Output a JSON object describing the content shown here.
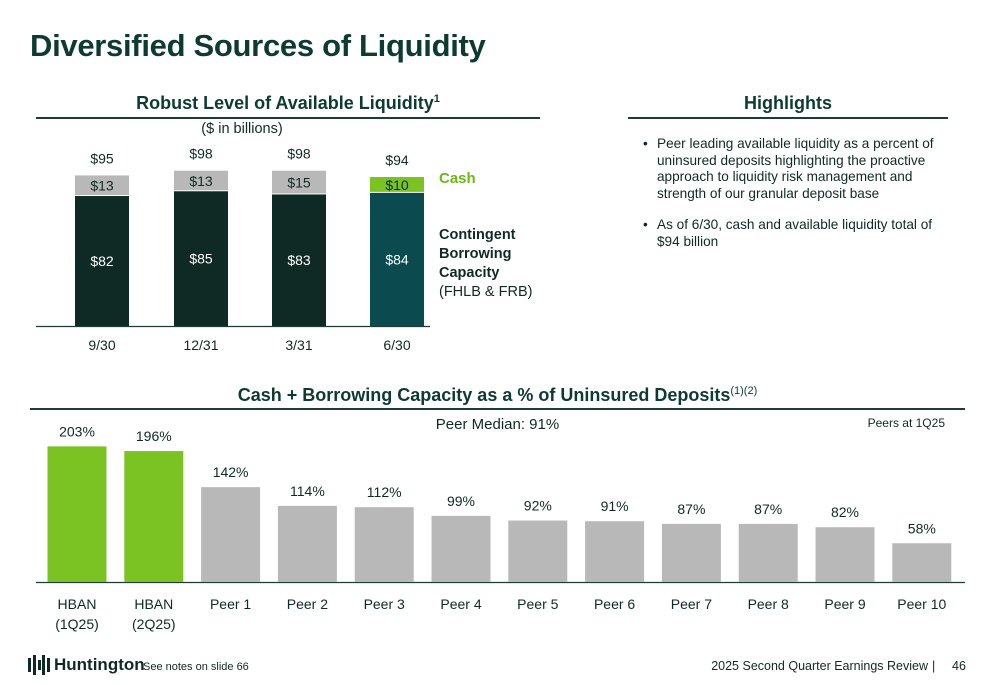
{
  "title": "Diversified Sources of Liquidity",
  "liquidity_section": {
    "title": "Robust Level of Available Liquidity",
    "title_sup": "1",
    "subtitle": "($ in billions)",
    "legend_cash": "Cash",
    "legend_contingent": [
      "Contingent",
      "Borrowing",
      "Capacity"
    ],
    "legend_contingent_note": "(FHLB & FRB)"
  },
  "highlights": {
    "title": "Highlights",
    "items": [
      {
        "bullet": "•",
        "text": "Peer leading available liquidity as a percent of uninsured deposits highlighting the proactive approach to liquidity risk management and strength of our granular deposit base"
      },
      {
        "bullet": "•",
        "text": "As of 6/30, cash and available liquidity total of $94 billion"
      }
    ]
  },
  "peer_section": {
    "title": "Cash + Borrowing Capacity as a % of Uninsured Deposits",
    "title_sup": "(1)(2)",
    "median_label": "Peer Median: 91%",
    "peers_note": "Peers at 1Q25"
  },
  "chart_data": [
    {
      "type": "bar",
      "stacked": true,
      "categories": [
        "9/30",
        "12/31",
        "3/31",
        "6/30"
      ],
      "series": [
        {
          "name": "Contingent Borrowing Capacity (FHLB & FRB)",
          "values": [
            82,
            85,
            83,
            84
          ],
          "labels": [
            "$82",
            "$85",
            "$83",
            "$84"
          ]
        },
        {
          "name": "Cash",
          "values": [
            13,
            13,
            15,
            10
          ],
          "labels": [
            "$13",
            "$13",
            "$15",
            "$10"
          ]
        }
      ],
      "totals": [
        95,
        98,
        98,
        94
      ],
      "total_labels": [
        "$95",
        "$98",
        "$98",
        "$94"
      ],
      "colors": {
        "contingent": "#0f2a24",
        "contingent_latest": "#0b4a4f",
        "cash": "#b8b8b8",
        "cash_latest": "#7ac322"
      }
    },
    {
      "type": "bar",
      "categories": [
        [
          "HBAN",
          "(1Q25)"
        ],
        [
          "HBAN",
          "(2Q25)"
        ],
        [
          "Peer 1"
        ],
        [
          "Peer 2"
        ],
        [
          "Peer 3"
        ],
        [
          "Peer 4"
        ],
        [
          "Peer 5"
        ],
        [
          "Peer 6"
        ],
        [
          "Peer 7"
        ],
        [
          "Peer 8"
        ],
        [
          "Peer 9"
        ],
        [
          "Peer 10"
        ]
      ],
      "values": [
        203,
        196,
        142,
        114,
        112,
        99,
        92,
        91,
        87,
        87,
        82,
        58
      ],
      "value_labels": [
        "203%",
        "196%",
        "142%",
        "114%",
        "112%",
        "99%",
        "92%",
        "91%",
        "87%",
        "87%",
        "82%",
        "58%"
      ],
      "highlight_count": 2,
      "colors": {
        "highlight": "#7ac322",
        "peer": "#b8b8b8"
      }
    }
  ],
  "footer": {
    "brand": "Huntington",
    "notes": "See notes on slide 66",
    "deck": "2025 Second Quarter Earnings Review",
    "separator": "|",
    "page": "46"
  }
}
